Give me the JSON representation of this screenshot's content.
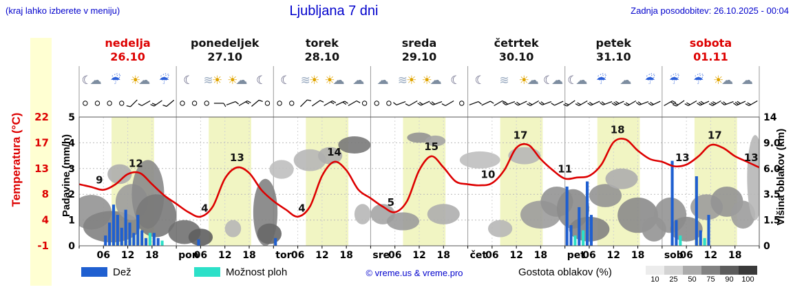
{
  "header": {
    "hint": "(kraj lahko izberete v meniju)",
    "title": "Ljubljana 7 dni",
    "last_update": "Zadnja posodobitev: 26.10.2025 - 00:04"
  },
  "days": [
    {
      "name": "nedelja",
      "date": "26.10",
      "weekend": true,
      "icons": [
        "☾☁",
        "☔",
        "☀☁",
        "☔"
      ]
    },
    {
      "name": "ponedeljek",
      "date": "27.10",
      "weekend": false,
      "icons": [
        "☾",
        "≋☀",
        "☀☁",
        "☾"
      ]
    },
    {
      "name": "torek",
      "date": "28.10",
      "weekend": false,
      "icons": [
        "☾",
        "≋☀",
        "☀☁",
        "☁"
      ]
    },
    {
      "name": "sreda",
      "date": "29.10",
      "weekend": false,
      "icons": [
        "☁",
        "≋☀",
        "☀☁",
        "☾"
      ]
    },
    {
      "name": "četrtek",
      "date": "30.10",
      "weekend": false,
      "icons": [
        "☾",
        "≋",
        "☀☁",
        "☾☁"
      ]
    },
    {
      "name": "petek",
      "date": "31.10",
      "weekend": false,
      "icons": [
        "☾☁",
        "☔",
        "☁",
        "☔"
      ]
    },
    {
      "name": "sobota",
      "date": "01.11",
      "weekend": true,
      "icons": [
        "☔",
        "☔",
        "☀☁",
        "☁"
      ]
    }
  ],
  "axes": {
    "temp": {
      "title": "Temperatura (°C)",
      "ticks": [
        "22",
        "17",
        "13",
        "8",
        "4",
        "-1"
      ]
    },
    "precip": {
      "title": "Padavine (mm/h)",
      "ticks": [
        "5",
        "4",
        "3",
        "2",
        "1",
        "0"
      ]
    },
    "cloud": {
      "title": "Višina oblakov (km)",
      "ticks": [
        "14",
        "9.0",
        "6.0",
        "3.5",
        "1.5",
        "0"
      ]
    },
    "x": {
      "hour_labels": [
        "06",
        "12",
        "18"
      ],
      "day_abbrs": [
        "pon",
        "tor",
        "sre",
        "čet",
        "pet",
        "sob"
      ]
    }
  },
  "legend": {
    "rain": "Dež",
    "shower": "Možnost ploh",
    "copyright": "© vreme.us & vreme.pro",
    "cloud_density": "Gostota oblakov (%)",
    "density_ticks": [
      "10",
      "25",
      "50",
      "75",
      "90",
      "100"
    ],
    "density_colors": [
      "#ececec",
      "#d3d3d3",
      "#ababab",
      "#828282",
      "#5c5c5c",
      "#3a3a3a"
    ]
  },
  "colors": {
    "accent_blue": "#0000cc",
    "temp_red": "#dd0000",
    "rain_blue": "#1f5fd0",
    "shower_cyan": "#2ce0c8",
    "day_band": "#f1f5c3",
    "strip_yellow": "#ffffd2"
  },
  "chart_data": {
    "type": "line",
    "subtype": "meteogram",
    "hours_total": 168,
    "daylight_band_hours": [
      8,
      18.5
    ],
    "y_axis": {
      "precip_max": 5,
      "temp_min": -1,
      "temp_max": 22,
      "cloud_km_breaks": [
        0,
        1.5,
        3.5,
        6,
        9,
        14
      ]
    },
    "temperature": {
      "unit": "°C",
      "step_hours": 3,
      "values": [
        10,
        9.5,
        9,
        10,
        11.8,
        12,
        10,
        8,
        6.5,
        5,
        4.2,
        6,
        11,
        13,
        12,
        9,
        7,
        5.5,
        4.2,
        6,
        11.5,
        14,
        12.5,
        9,
        7.5,
        6,
        5,
        7,
        12.5,
        15,
        13,
        10.5,
        10,
        9.8,
        10.2,
        12.5,
        16.5,
        17,
        14.5,
        12.5,
        11,
        11.2,
        11.5,
        13.5,
        17.5,
        18,
        16,
        14.5,
        14,
        13.2,
        13.5,
        15,
        17,
        16.5,
        15,
        14,
        13
      ],
      "point_labels": [
        [
          5,
          9
        ],
        [
          14,
          12
        ],
        [
          31,
          4
        ],
        [
          39,
          13
        ],
        [
          55,
          4
        ],
        [
          63,
          14
        ],
        [
          77,
          5
        ],
        [
          87,
          15
        ],
        [
          101,
          10
        ],
        [
          109,
          17
        ],
        [
          120,
          11
        ],
        [
          133,
          18
        ],
        [
          149,
          13
        ],
        [
          157,
          17
        ],
        [
          166,
          13
        ]
      ]
    },
    "rain_mmh": [
      [
        6,
        0.4
      ],
      [
        7,
        0.9
      ],
      [
        8,
        1.6
      ],
      [
        9,
        1.2
      ],
      [
        10,
        0.7
      ],
      [
        11,
        1.4
      ],
      [
        12,
        0.9
      ],
      [
        13,
        0.5
      ],
      [
        14,
        1.2
      ],
      [
        15,
        0.6
      ],
      [
        16,
        0.3
      ],
      [
        18,
        0.5
      ],
      [
        19,
        0.3
      ],
      [
        29,
        0.25
      ],
      [
        48,
        0.3
      ],
      [
        120,
        2.3
      ],
      [
        121,
        0.8
      ],
      [
        123,
        1.5
      ],
      [
        125,
        2.5
      ],
      [
        126,
        1.2
      ],
      [
        146,
        3.3
      ],
      [
        147,
        1.0
      ],
      [
        152,
        2.7
      ],
      [
        153,
        0.6
      ],
      [
        155,
        1.2
      ]
    ],
    "showers_mmh": [
      [
        8,
        0.3
      ],
      [
        12,
        0.4
      ],
      [
        17,
        0.5
      ],
      [
        20,
        0.2
      ],
      [
        122,
        0.4
      ],
      [
        124,
        0.6
      ],
      [
        148,
        0.4
      ],
      [
        154,
        0.3
      ]
    ],
    "clouds": [
      [
        3,
        2.2,
        10,
        2.5,
        0.5
      ],
      [
        8,
        1.2,
        14,
        2,
        0.6
      ],
      [
        13,
        3,
        8,
        3,
        0.45
      ],
      [
        17,
        4,
        8,
        6,
        0.55
      ],
      [
        19,
        2,
        10,
        3,
        0.65
      ],
      [
        10,
        5.5,
        6,
        2,
        0.35
      ],
      [
        26,
        0.8,
        8,
        1.4,
        0.7
      ],
      [
        30,
        0.5,
        6,
        1,
        0.8
      ],
      [
        38,
        1,
        4,
        1,
        0.3
      ],
      [
        46,
        2.5,
        6,
        5,
        0.6
      ],
      [
        47,
        0.7,
        6,
        1.2,
        0.75
      ],
      [
        50,
        6,
        6,
        2,
        0.25
      ],
      [
        57,
        7,
        8,
        2.5,
        0.3
      ],
      [
        62,
        7.5,
        6,
        2,
        0.35
      ],
      [
        68,
        9,
        8,
        2.5,
        0.65
      ],
      [
        70,
        2,
        4,
        1.5,
        0.3
      ],
      [
        75,
        2,
        6,
        1.5,
        0.4
      ],
      [
        80,
        1.5,
        8,
        1.2,
        0.45
      ],
      [
        84,
        10,
        6,
        2,
        0.5
      ],
      [
        88,
        9.5,
        5,
        1.8,
        0.4
      ],
      [
        90,
        2,
        8,
        1.5,
        0.35
      ],
      [
        99,
        7,
        10,
        2,
        0.25
      ],
      [
        104,
        1,
        6,
        1,
        0.3
      ],
      [
        110,
        7.5,
        8,
        2,
        0.3
      ],
      [
        114,
        2,
        10,
        2,
        0.45
      ],
      [
        118,
        3,
        8,
        2.5,
        0.5
      ],
      [
        122,
        2.5,
        8,
        3,
        0.55
      ],
      [
        126,
        1,
        10,
        1.5,
        0.6
      ],
      [
        130,
        3.5,
        8,
        2,
        0.5
      ],
      [
        134,
        5,
        8,
        2,
        0.35
      ],
      [
        138,
        2,
        10,
        2.5,
        0.55
      ],
      [
        142,
        1,
        6,
        1.5,
        0.5
      ],
      [
        146,
        2,
        8,
        2.5,
        0.5
      ],
      [
        150,
        1,
        8,
        1.5,
        0.55
      ],
      [
        155,
        2.5,
        8,
        2,
        0.45
      ],
      [
        160,
        3,
        8,
        2.5,
        0.5
      ],
      [
        164,
        2,
        6,
        2,
        0.45
      ],
      [
        167,
        6,
        4,
        9,
        0.3
      ]
    ],
    "winds": [
      [
        0,
        0,
        0
      ],
      [
        3,
        0,
        0
      ],
      [
        6,
        0,
        0
      ],
      [
        9,
        0,
        0
      ],
      [
        12,
        1,
        225
      ],
      [
        15,
        1,
        240
      ],
      [
        18,
        2,
        235
      ],
      [
        21,
        1,
        230
      ],
      [
        24,
        0,
        0
      ],
      [
        27,
        0,
        0
      ],
      [
        30,
        0,
        0
      ],
      [
        33,
        1,
        90
      ],
      [
        36,
        1,
        70
      ],
      [
        39,
        2,
        60
      ],
      [
        42,
        1,
        50
      ],
      [
        45,
        0,
        0
      ],
      [
        48,
        0,
        0
      ],
      [
        51,
        0,
        0
      ],
      [
        54,
        1,
        45
      ],
      [
        57,
        1,
        55
      ],
      [
        60,
        2,
        60
      ],
      [
        63,
        2,
        65
      ],
      [
        66,
        1,
        60
      ],
      [
        69,
        0,
        0
      ],
      [
        72,
        0,
        0
      ],
      [
        75,
        0,
        0
      ],
      [
        78,
        1,
        250
      ],
      [
        81,
        1,
        240
      ],
      [
        84,
        2,
        245
      ],
      [
        87,
        2,
        250
      ],
      [
        90,
        1,
        240
      ],
      [
        93,
        0,
        0
      ],
      [
        96,
        1,
        70
      ],
      [
        99,
        1,
        65
      ],
      [
        102,
        1,
        60
      ],
      [
        105,
        2,
        250
      ],
      [
        108,
        2,
        245
      ],
      [
        111,
        2,
        240
      ],
      [
        114,
        2,
        250
      ],
      [
        117,
        1,
        245
      ],
      [
        120,
        2,
        235
      ],
      [
        123,
        2,
        240
      ],
      [
        126,
        2,
        245
      ],
      [
        129,
        2,
        250
      ],
      [
        132,
        3,
        245
      ],
      [
        135,
        2,
        240
      ],
      [
        138,
        2,
        250
      ],
      [
        141,
        2,
        245
      ],
      [
        144,
        2,
        60
      ],
      [
        147,
        2,
        235
      ],
      [
        150,
        2,
        240
      ],
      [
        153,
        3,
        245
      ],
      [
        156,
        3,
        240
      ],
      [
        159,
        2,
        250
      ],
      [
        162,
        3,
        245
      ],
      [
        165,
        2,
        240
      ]
    ]
  }
}
